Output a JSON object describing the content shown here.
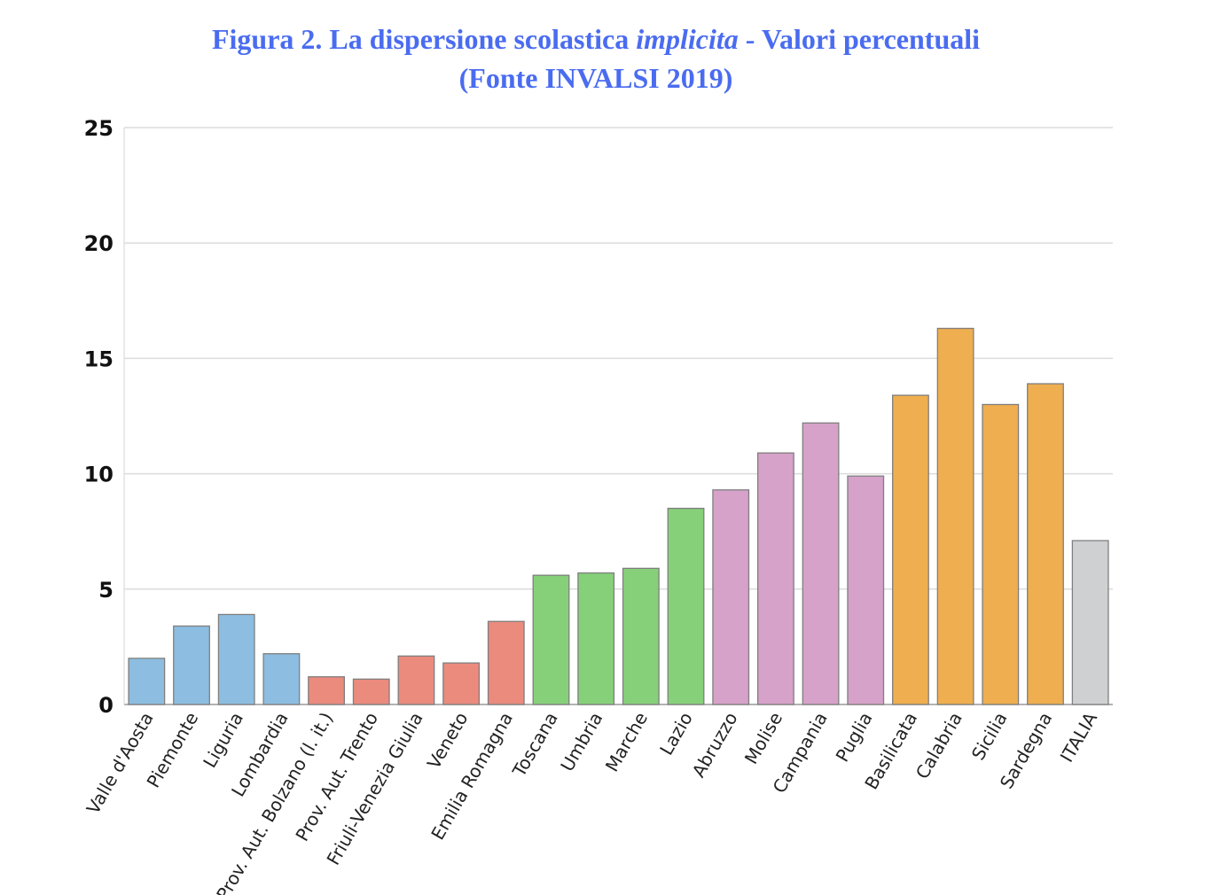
{
  "title": {
    "line1_before": "Figura 2. La dispersione scolastica ",
    "line1_emph": "implicita",
    "line1_after": " - Valori percentuali",
    "line2": "(Fonte INVALSI 2019)"
  },
  "chart_data": {
    "type": "bar",
    "title": "Figura 2. La dispersione scolastica implicita - Valori percentuali (Fonte INVALSI 2019)",
    "xlabel": "",
    "ylabel": "",
    "ylim": [
      0,
      25
    ],
    "yticks": [
      "0",
      "5",
      "10",
      "15",
      "20",
      "25"
    ],
    "grid": true,
    "categories": [
      "Valle d'Aosta",
      "Piemonte",
      "Liguria",
      "Lombardia",
      "Prov. Aut. Bolzano (l. it.)",
      "Prov. Aut. Trento",
      "Friuli-Venezia Giulia",
      "Veneto",
      "Emilia Romagna",
      "Toscana",
      "Umbria",
      "Marche",
      "Lazio",
      "Abruzzo",
      "Molise",
      "Campania",
      "Puglia",
      "Basilicata",
      "Calabria",
      "Sicilia",
      "Sardegna",
      "ITALIA"
    ],
    "values": [
      2.0,
      3.4,
      3.9,
      2.2,
      1.2,
      1.1,
      2.1,
      1.8,
      3.6,
      5.6,
      5.7,
      5.9,
      8.5,
      9.3,
      10.9,
      12.2,
      9.9,
      13.4,
      16.3,
      13.0,
      13.9,
      7.1
    ],
    "bar_colors": [
      "#8dbde0",
      "#8dbde0",
      "#8dbde0",
      "#8dbde0",
      "#ea8b7e",
      "#ea8b7e",
      "#ea8b7e",
      "#ea8b7e",
      "#ea8b7e",
      "#86d07a",
      "#86d07a",
      "#86d07a",
      "#86d07a",
      "#d6a2c9",
      "#d6a2c9",
      "#d6a2c9",
      "#d6a2c9",
      "#efae4f",
      "#efae4f",
      "#efae4f",
      "#efae4f",
      "#cfd0d2"
    ]
  }
}
